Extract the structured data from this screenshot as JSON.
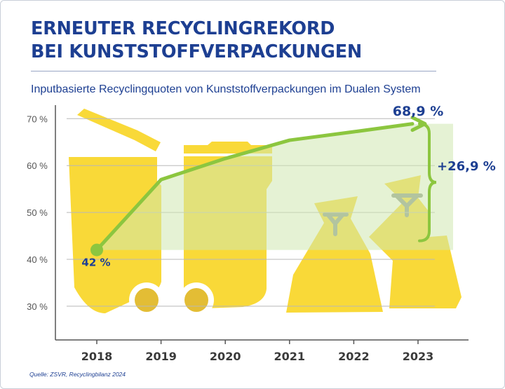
{
  "title_lines": [
    "ERNEUTER RECYCLINGREKORD",
    "BEI KUNSTSTOFFVERPACKUNGEN"
  ],
  "subtitle": "Inputbasierte Recyclingquoten von Kunststoffverpackungen im Dualen System",
  "source": "Quelle: ZSVR, Recyclingbilanz 2024",
  "colors": {
    "title": "#1d3f92",
    "line": "#8cc63f",
    "area": "#cfe8b0",
    "yellow": "#f9d938",
    "yellow_dark": "#e3bd35",
    "bag_tie": "#8f9a8a",
    "grid": "#b8b8b8",
    "axis": "#555555"
  },
  "chart_data": {
    "type": "line",
    "title": "Inputbasierte Recyclingquoten von Kunststoffverpackungen im Dualen System",
    "xlabel": "",
    "ylabel": "",
    "x": [
      2018,
      2019,
      2020,
      2021,
      2022,
      2023
    ],
    "x_tick_labels": [
      "2018",
      "2019",
      "2020",
      "2021",
      "2022",
      "2023"
    ],
    "ylim": [
      25,
      75
    ],
    "y_ticks": [
      30,
      40,
      50,
      60,
      70
    ],
    "y_tick_labels": [
      "30 %",
      "40 %",
      "50 %",
      "60 %",
      "70 %"
    ],
    "grid": true,
    "series": [
      {
        "values": [
          42.0,
          57.0,
          61.5,
          65.4,
          67.2,
          68.9
        ]
      }
    ],
    "annotations": {
      "start_label": "42 %",
      "end_label": "68,9 %",
      "increase_label": "+26,9 %"
    }
  }
}
